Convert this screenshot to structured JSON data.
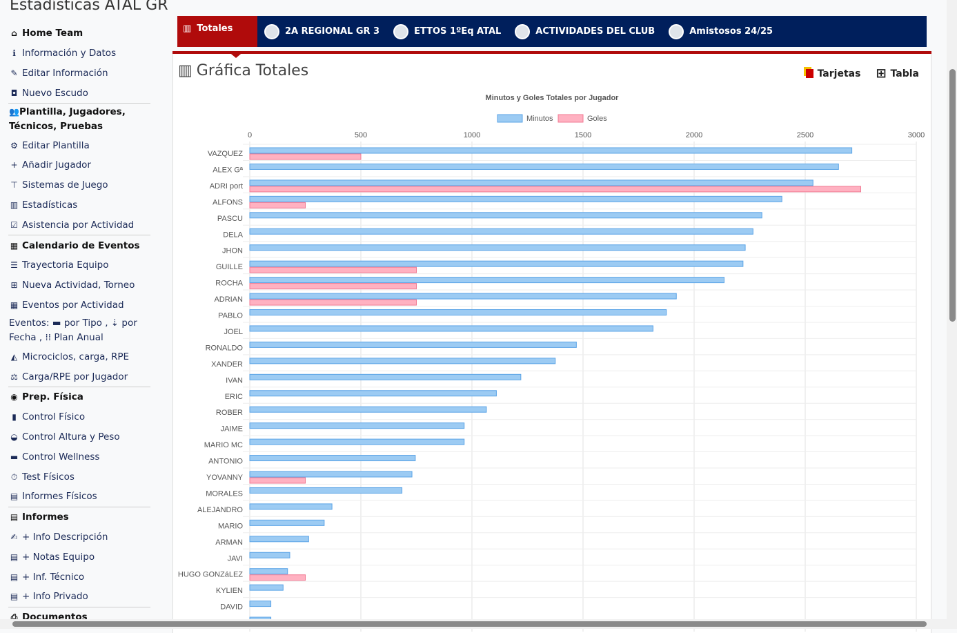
{
  "page_title": "Estadísticas ATAL GR",
  "sidebar": {
    "items": [
      {
        "label": "Home Team",
        "icon": "home-icon",
        "glyph": "⌂",
        "head": true
      },
      {
        "label": "Información y Datos",
        "icon": "info-icon",
        "glyph": "ℹ"
      },
      {
        "label": "Editar Información",
        "icon": "edit-icon",
        "glyph": "✎"
      },
      {
        "label": "Nuevo Escudo",
        "icon": "camera-icon",
        "glyph": "◘",
        "sep": true
      },
      {
        "label": "Plantilla, Jugadores, Técnicos, Pruebas",
        "icon": "users-icon",
        "glyph": "👥",
        "head": true,
        "multi": true
      },
      {
        "label": "Editar Plantilla",
        "icon": "users-cog-icon",
        "glyph": "⚙"
      },
      {
        "label": "Añadir Jugador",
        "icon": "user-plus-icon",
        "glyph": "+"
      },
      {
        "label": "Sistemas de Juego",
        "icon": "sitemap-icon",
        "glyph": "⊤"
      },
      {
        "label": "Estadísticas",
        "icon": "chart-bar-icon",
        "glyph": "▥"
      },
      {
        "label": "Asistencia por Actividad",
        "icon": "calendar-check-icon",
        "glyph": "☑",
        "sep": true
      },
      {
        "label": "Calendario de Eventos",
        "icon": "calendar-icon",
        "glyph": "▦",
        "head": true
      },
      {
        "label": "Trayectoria Equipo",
        "icon": "list-icon",
        "glyph": "☰"
      },
      {
        "label": "Nueva Actividad, Torneo",
        "icon": "calendar-plus-icon",
        "glyph": "⊞"
      },
      {
        "label": "Eventos por Actividad",
        "icon": "calendar-alt-icon",
        "glyph": "▦"
      },
      {
        "label": "Eventos: ▬ por Tipo , ⇣ por Fecha , ⁞⁞ Plan Anual",
        "icon": "calendar-events-icon",
        "glyph": "",
        "multi": true
      },
      {
        "label": "Microciclos, carga, RPE",
        "icon": "chart-area-icon",
        "glyph": "◭"
      },
      {
        "label": "Carga/RPE por Jugador",
        "icon": "balance-scale-icon",
        "glyph": "⚖",
        "sep": true
      },
      {
        "label": "Prep. Física",
        "icon": "universal-access-icon",
        "glyph": "◉",
        "head": true
      },
      {
        "label": "Control Físico",
        "icon": "ruler-icon",
        "glyph": "▮"
      },
      {
        "label": "Control Altura y Peso",
        "icon": "tachometer-icon",
        "glyph": "◒"
      },
      {
        "label": "Control Wellness",
        "icon": "bed-icon",
        "glyph": "▬"
      },
      {
        "label": "Test Físicos",
        "icon": "stopwatch-icon",
        "glyph": "⏱"
      },
      {
        "label": "Informes Físicos",
        "icon": "file-medical-icon",
        "glyph": "▤",
        "sep": true
      },
      {
        "label": "Informes",
        "icon": "clipboard-list-icon",
        "glyph": "▤",
        "head": true
      },
      {
        "label": "+ Info Descripción",
        "icon": "file-signature-icon",
        "glyph": "✍"
      },
      {
        "label": "+ Notas Equipo",
        "icon": "file-alt-icon",
        "glyph": "▤"
      },
      {
        "label": "+ Inf. Técnico",
        "icon": "file-image-icon",
        "glyph": "▤"
      },
      {
        "label": "+ Info Privado",
        "icon": "file-lock-icon",
        "glyph": "▤",
        "sep": true
      },
      {
        "label": "Documentos",
        "icon": "print-icon",
        "glyph": "⎙",
        "head": true
      }
    ]
  },
  "tabs": [
    {
      "label": "Totales",
      "icon": "chart-bar-icon",
      "active": true
    },
    {
      "label": "2A REGIONAL GR 3",
      "icon": "team-crest-icon"
    },
    {
      "label": "ETTOS 1ºEq ATAL",
      "icon": "team-crest-icon"
    },
    {
      "label": "ACTIVIDADES DEL CLUB",
      "icon": "team-crest-icon"
    },
    {
      "label": "Amistosos 24/25",
      "icon": "team-crest-icon"
    }
  ],
  "card": {
    "title": "Gráfica Totales",
    "tarjetas_label": "Tarjetas",
    "tabla_label": "Tabla"
  },
  "colors": {
    "navy": "#001f5c",
    "red": "#b00b0b",
    "minutos": "#9ccbf3",
    "goles": "#ffb1c1"
  },
  "chart_data": {
    "type": "bar",
    "orientation": "horizontal",
    "title": "Minutos y Goles Totales por Jugador",
    "legend_position": "top",
    "grid": true,
    "xlim": [
      0,
      3000
    ],
    "xticks": [
      0,
      500,
      1000,
      1500,
      2000,
      2500,
      3000
    ],
    "categories": [
      "VAZQUEZ",
      "ALEX Gª",
      "ADRI port",
      "ALFONS",
      "PASCU",
      "DELA",
      "JHON",
      "GUILLE",
      "ROCHA",
      "ADRIAN",
      "PABLO",
      "JOEL",
      "RONALDO",
      "XANDER",
      "IVAN",
      "ERIC",
      "ROBER",
      "JAIME",
      "MARIO MC",
      "ANTONIO",
      "YOVANNY",
      "MORALES",
      "ALEJANDRO",
      "MARIO",
      "ARMAN",
      "JAVI",
      "HUGO GONZáLEZ",
      "KYLIEN",
      "DAVID"
    ],
    "series": [
      {
        "name": "Minutos",
        "values": [
          2710,
          2650,
          2535,
          2395,
          2305,
          2265,
          2230,
          2220,
          2135,
          1920,
          1875,
          1815,
          1470,
          1375,
          1220,
          1110,
          1065,
          965,
          965,
          745,
          730,
          685,
          370,
          335,
          265,
          180,
          170,
          150,
          95
        ]
      },
      {
        "name": "Goles",
        "values": [
          500,
          0,
          2750,
          250,
          0,
          0,
          0,
          750,
          750,
          750,
          0,
          0,
          0,
          0,
          0,
          0,
          0,
          0,
          0,
          0,
          250,
          0,
          0,
          0,
          0,
          0,
          250,
          0,
          0
        ]
      }
    ]
  }
}
